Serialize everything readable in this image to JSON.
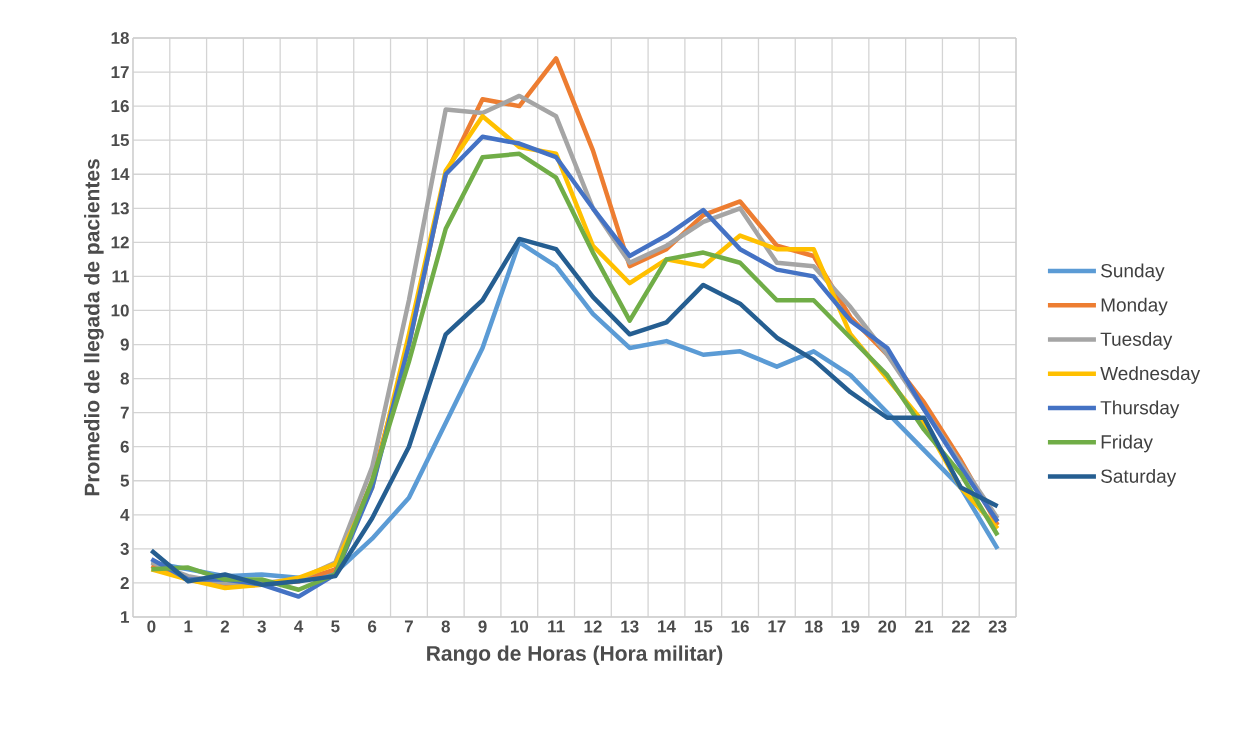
{
  "chart_data": {
    "type": "line",
    "xlabel": "Rango de Horas (Hora militar)",
    "ylabel": "Promedio de llegada de pacientes",
    "categories": [
      "0",
      "1",
      "2",
      "3",
      "4",
      "5",
      "6",
      "7",
      "8",
      "9",
      "10",
      "11",
      "12",
      "13",
      "14",
      "15",
      "16",
      "17",
      "18",
      "19",
      "20",
      "21",
      "22",
      "23"
    ],
    "ylim": [
      1,
      18
    ],
    "yticks": [
      1,
      2,
      3,
      4,
      5,
      6,
      7,
      8,
      9,
      10,
      11,
      12,
      13,
      14,
      15,
      16,
      17,
      18
    ],
    "grid": true,
    "legend": "right",
    "line_style": "solid",
    "series": [
      {
        "name": "Sunday",
        "color": "#5b9bd5",
        "values": [
          2.6,
          2.4,
          2.2,
          2.25,
          2.15,
          2.3,
          3.3,
          4.5,
          6.7,
          8.9,
          12.0,
          11.3,
          9.9,
          8.9,
          9.1,
          8.7,
          8.8,
          8.35,
          8.8,
          8.1,
          7.0,
          5.9,
          4.8,
          3.0
        ]
      },
      {
        "name": "Monday",
        "color": "#ed7d31",
        "values": [
          2.5,
          2.1,
          1.9,
          1.95,
          2.05,
          2.4,
          5.0,
          9.0,
          14.0,
          16.2,
          16.0,
          17.4,
          14.7,
          11.3,
          11.8,
          12.8,
          13.2,
          11.9,
          11.6,
          9.8,
          8.7,
          7.3,
          5.6,
          3.7
        ]
      },
      {
        "name": "Tuesday",
        "color": "#a5a5a5",
        "values": [
          2.6,
          2.2,
          2.0,
          2.0,
          2.1,
          2.6,
          5.4,
          10.3,
          15.9,
          15.8,
          16.3,
          15.7,
          13.0,
          11.4,
          11.9,
          12.6,
          13.0,
          11.4,
          11.3,
          10.1,
          8.7,
          7.1,
          5.5,
          3.9
        ]
      },
      {
        "name": "Wednesday",
        "color": "#ffc000",
        "values": [
          2.4,
          2.1,
          1.85,
          1.95,
          2.15,
          2.55,
          4.8,
          9.3,
          14.1,
          15.7,
          14.8,
          14.6,
          11.9,
          10.8,
          11.5,
          11.3,
          12.2,
          11.8,
          11.8,
          9.3,
          8.0,
          6.7,
          4.8,
          3.6
        ]
      },
      {
        "name": "Thursday",
        "color": "#4472c4",
        "values": [
          2.7,
          2.1,
          2.1,
          1.95,
          1.6,
          2.25,
          4.8,
          9.0,
          14.0,
          15.1,
          14.9,
          14.5,
          13.0,
          11.6,
          12.2,
          12.95,
          11.8,
          11.2,
          11.0,
          9.7,
          8.9,
          7.1,
          5.4,
          3.8
        ]
      },
      {
        "name": "Friday",
        "color": "#70ad47",
        "values": [
          2.4,
          2.45,
          2.1,
          2.1,
          1.8,
          2.25,
          5.0,
          8.5,
          12.4,
          14.5,
          14.6,
          13.9,
          11.7,
          9.7,
          11.5,
          11.7,
          11.4,
          10.3,
          10.3,
          9.2,
          8.1,
          6.5,
          5.2,
          3.4
        ]
      },
      {
        "name": "Saturday",
        "color": "#255e91",
        "values": [
          2.95,
          2.05,
          2.25,
          1.95,
          2.05,
          2.2,
          3.9,
          6.0,
          9.3,
          10.3,
          12.1,
          11.8,
          10.4,
          9.3,
          9.65,
          10.75,
          10.2,
          9.2,
          8.55,
          7.6,
          6.85,
          6.85,
          4.8,
          4.25
        ]
      }
    ]
  }
}
